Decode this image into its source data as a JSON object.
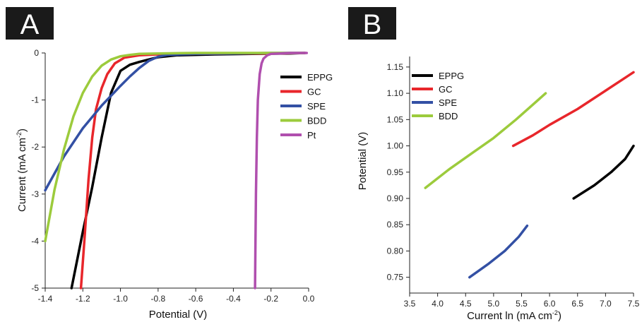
{
  "colors": {
    "EPPG": "#000000",
    "GC": "#e8262b",
    "SPE": "#3350a4",
    "BDD": "#9ccb3c",
    "Pt": "#b04fae",
    "badge": "#1a1a1a"
  },
  "chart_data": [
    {
      "panel": "A",
      "type": "line",
      "title": "",
      "xlabel": "Potential (V)",
      "ylabel_main": "Current  (mA cm",
      "ylabel_sup": "-2",
      "ylabel_end": ")",
      "xlim": [
        -1.4,
        0.0
      ],
      "ylim": [
        -5,
        0
      ],
      "xticks": [
        -1.4,
        -1.2,
        -1.0,
        -0.8,
        -0.6,
        -0.4,
        -0.2,
        0.0
      ],
      "xtick_labels": [
        "-1.4",
        "-1.2",
        "-1.0",
        "-0.8",
        "-0.6",
        "-0.4",
        "-0.2",
        "0.0"
      ],
      "yticks": [
        0,
        -1,
        -2,
        -3,
        -4,
        -5
      ],
      "ytick_labels": [
        "0",
        "-1",
        "-2",
        "-3",
        "-4",
        "-5"
      ],
      "legend_position": "top-right",
      "series": [
        {
          "name": "EPPG",
          "x": [
            -1.26,
            -1.2,
            -1.15,
            -1.1,
            -1.05,
            -1.0,
            -0.95,
            -0.9,
            -0.85,
            -0.8,
            -0.7,
            -0.5,
            -0.3,
            -0.1,
            -0.02
          ],
          "y": [
            -5.0,
            -3.8,
            -2.85,
            -1.8,
            -0.85,
            -0.38,
            -0.25,
            -0.19,
            -0.14,
            -0.09,
            -0.05,
            -0.03,
            -0.02,
            -0.01,
            0.0
          ]
        },
        {
          "name": "GC",
          "x": [
            -1.21,
            -1.19,
            -1.17,
            -1.15,
            -1.13,
            -1.1,
            -1.07,
            -1.03,
            -0.98,
            -0.9,
            -0.8,
            -0.6,
            -0.4,
            -0.2,
            -0.02
          ],
          "y": [
            -5.0,
            -3.9,
            -2.7,
            -1.8,
            -1.2,
            -0.75,
            -0.45,
            -0.22,
            -0.1,
            -0.05,
            -0.03,
            -0.02,
            -0.01,
            -0.01,
            0.0
          ]
        },
        {
          "name": "SPE",
          "x": [
            -1.4,
            -1.3,
            -1.2,
            -1.1,
            -1.0,
            -0.95,
            -0.9,
            -0.85,
            -0.8,
            -0.75,
            -0.6,
            -0.4,
            -0.2,
            -0.02
          ],
          "y": [
            -2.92,
            -2.2,
            -1.6,
            -1.12,
            -0.7,
            -0.5,
            -0.32,
            -0.17,
            -0.08,
            -0.04,
            -0.02,
            -0.01,
            0.0,
            0.0
          ]
        },
        {
          "name": "BDD",
          "x": [
            -1.4,
            -1.35,
            -1.3,
            -1.25,
            -1.2,
            -1.15,
            -1.1,
            -1.05,
            -1.0,
            -0.95,
            -0.9,
            -0.8,
            -0.6,
            -0.4,
            -0.2,
            -0.02
          ],
          "y": [
            -4.0,
            -2.9,
            -2.05,
            -1.35,
            -0.85,
            -0.5,
            -0.27,
            -0.14,
            -0.07,
            -0.04,
            -0.02,
            -0.01,
            0.0,
            0.0,
            0.0,
            0.0
          ]
        },
        {
          "name": "Pt",
          "x": [
            -0.285,
            -0.283,
            -0.28,
            -0.275,
            -0.27,
            -0.26,
            -0.25,
            -0.24,
            -0.22,
            -0.2,
            -0.15,
            -0.1,
            -0.05,
            -0.01
          ],
          "y": [
            -5.0,
            -4.2,
            -3.0,
            -1.8,
            -1.0,
            -0.45,
            -0.22,
            -0.12,
            -0.05,
            -0.02,
            -0.01,
            0.0,
            0.0,
            0.0
          ]
        }
      ]
    },
    {
      "panel": "B",
      "type": "line",
      "title": "",
      "xlabel_main": "Current  ln (mA cm",
      "xlabel_sup": "-2",
      "xlabel_end": ")",
      "ylabel": "Potential (V)",
      "xlim": [
        3.5,
        7.5
      ],
      "ylim": [
        0.72,
        1.17
      ],
      "xticks": [
        3.5,
        4.0,
        4.5,
        5.0,
        5.5,
        6.0,
        6.5,
        7.0,
        7.5
      ],
      "xtick_labels": [
        "3.5",
        "4.0",
        "4.5",
        "5.0",
        "5.5",
        "6.0",
        "6.5",
        "7.0",
        "7.5"
      ],
      "yticks": [
        0.75,
        0.8,
        0.85,
        0.9,
        0.95,
        1.0,
        1.05,
        1.1,
        1.15
      ],
      "ytick_labels": [
        "0.75",
        "0.80",
        "0.85",
        "0.90",
        "0.95",
        "1.00",
        "1.05",
        "1.10",
        "1.15"
      ],
      "legend_position": "top-left",
      "series": [
        {
          "name": "EPPG",
          "x": [
            6.43,
            6.8,
            7.1,
            7.35,
            7.5
          ],
          "y": [
            0.9,
            0.925,
            0.95,
            0.975,
            1.0
          ]
        },
        {
          "name": "GC",
          "x": [
            5.35,
            5.7,
            6.0,
            6.5,
            7.0,
            7.5
          ],
          "y": [
            1.0,
            1.02,
            1.04,
            1.07,
            1.105,
            1.14
          ]
        },
        {
          "name": "SPE",
          "x": [
            4.57,
            4.9,
            5.2,
            5.45,
            5.6
          ],
          "y": [
            0.75,
            0.775,
            0.8,
            0.827,
            0.848
          ]
        },
        {
          "name": "BDD",
          "x": [
            3.78,
            4.2,
            4.6,
            5.0,
            5.4,
            5.93
          ],
          "y": [
            0.92,
            0.955,
            0.985,
            1.015,
            1.05,
            1.1
          ]
        }
      ]
    }
  ]
}
